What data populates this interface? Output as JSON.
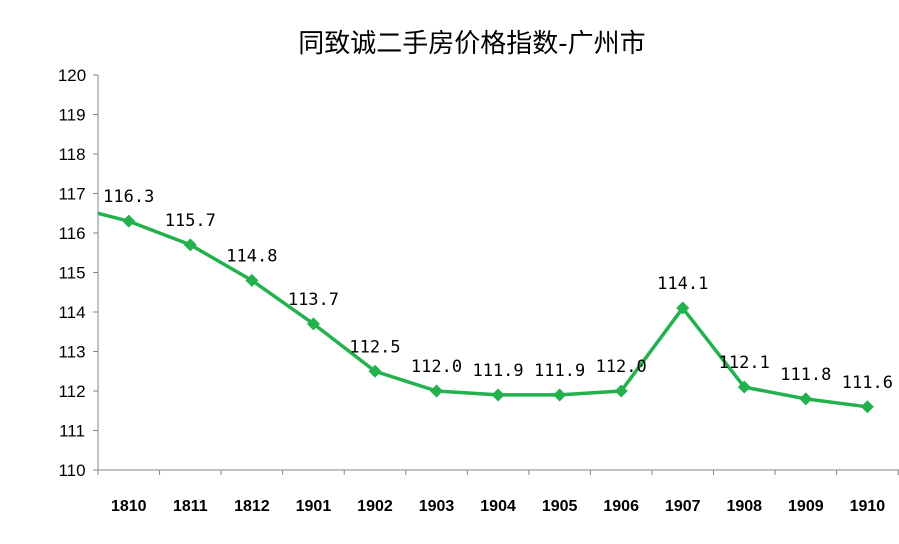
{
  "chart_data": {
    "type": "line",
    "title": "同致诚二手房价格指数-广州市",
    "xlabel": "",
    "ylabel": "",
    "categories": [
      "1810",
      "1811",
      "1812",
      "1901",
      "1902",
      "1903",
      "1904",
      "1905",
      "1906",
      "1907",
      "1908",
      "1909",
      "1910"
    ],
    "series": [
      {
        "values": [
          116.3,
          115.7,
          114.8,
          113.7,
          112.5,
          112.0,
          111.9,
          111.9,
          112.0,
          114.1,
          112.1,
          111.8,
          111.6
        ],
        "labels": [
          "116.3",
          "115.7",
          "114.8",
          "113.7",
          "112.5",
          "112.0",
          "111.9",
          "111.9",
          "112.0",
          "114.1",
          "112.1",
          "111.8",
          "111.6"
        ],
        "color": "#22b14c",
        "marker": "diamond"
      }
    ],
    "ylim": [
      110,
      120
    ],
    "yticks": [
      "110",
      "111",
      "112",
      "113",
      "114",
      "115",
      "116",
      "117",
      "118",
      "119",
      "120"
    ],
    "line_start_value": 116.5,
    "grid": false,
    "legend": "none"
  }
}
